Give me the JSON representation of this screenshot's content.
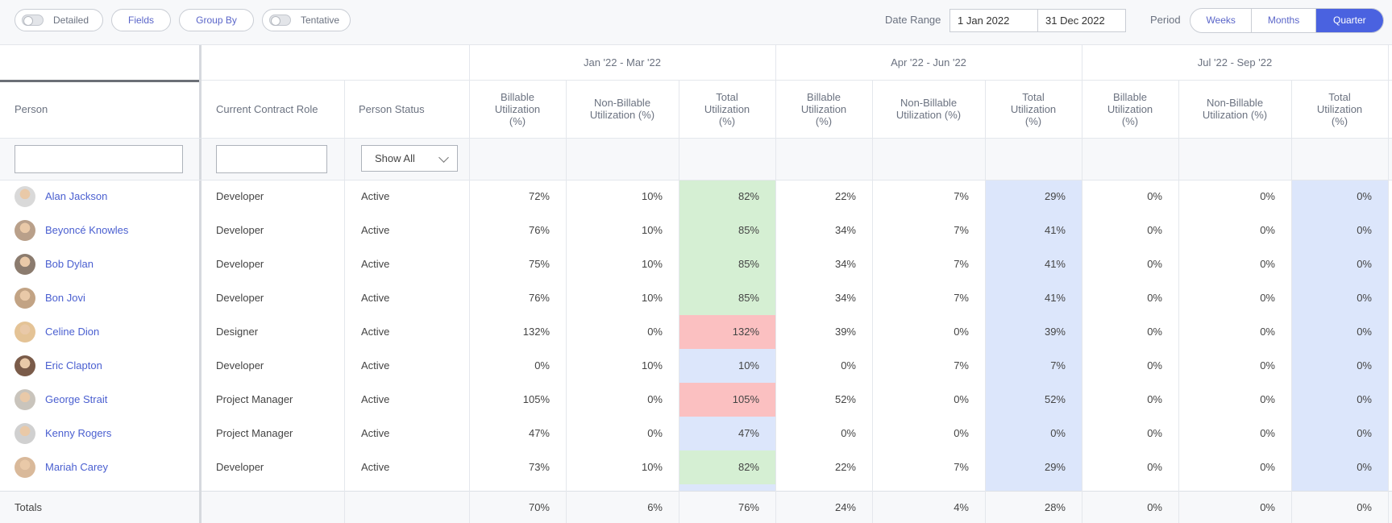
{
  "toolbar": {
    "detailed_label": "Detailed",
    "fields_label": "Fields",
    "group_by_label": "Group By",
    "tentative_label": "Tentative",
    "date_range_label": "Date Range",
    "date_start": "1 Jan 2022",
    "date_end": "31 Dec 2022",
    "period_label": "Period",
    "period_options": [
      "Weeks",
      "Months",
      "Quarter"
    ],
    "period_selected": "Quarter"
  },
  "table": {
    "group_headers": [
      "Jan '22 - Mar '22",
      "Apr '22 - Jun '22",
      "Jul '22 - Sep '22"
    ],
    "columns": {
      "person": "Person",
      "role": "Current Contract Role",
      "status": "Person Status",
      "billable": "Billable Utilization (%)",
      "nonbillable": "Non-Billable Utilization (%)",
      "total": "Total Utilization (%)"
    },
    "status_filter": "Show All",
    "rows": [
      {
        "name": "Alan Jackson",
        "role": "Developer",
        "status": "Active",
        "q1": [
          "72%",
          "10%",
          "82%"
        ],
        "q2": [
          "22%",
          "7%",
          "29%"
        ],
        "q3": [
          "0%",
          "0%",
          "0%"
        ],
        "q1_state": "good"
      },
      {
        "name": "Beyoncé Knowles",
        "role": "Developer",
        "status": "Active",
        "q1": [
          "76%",
          "10%",
          "85%"
        ],
        "q2": [
          "34%",
          "7%",
          "41%"
        ],
        "q3": [
          "0%",
          "0%",
          "0%"
        ],
        "q1_state": "good"
      },
      {
        "name": "Bob Dylan",
        "role": "Developer",
        "status": "Active",
        "q1": [
          "75%",
          "10%",
          "85%"
        ],
        "q2": [
          "34%",
          "7%",
          "41%"
        ],
        "q3": [
          "0%",
          "0%",
          "0%"
        ],
        "q1_state": "good"
      },
      {
        "name": "Bon Jovi",
        "role": "Developer",
        "status": "Active",
        "q1": [
          "76%",
          "10%",
          "85%"
        ],
        "q2": [
          "34%",
          "7%",
          "41%"
        ],
        "q3": [
          "0%",
          "0%",
          "0%"
        ],
        "q1_state": "good"
      },
      {
        "name": "Celine Dion",
        "role": "Designer",
        "status": "Active",
        "q1": [
          "132%",
          "0%",
          "132%"
        ],
        "q2": [
          "39%",
          "0%",
          "39%"
        ],
        "q3": [
          "0%",
          "0%",
          "0%"
        ],
        "q1_state": "over"
      },
      {
        "name": "Eric Clapton",
        "role": "Developer",
        "status": "Active",
        "q1": [
          "0%",
          "10%",
          "10%"
        ],
        "q2": [
          "0%",
          "7%",
          "7%"
        ],
        "q3": [
          "0%",
          "0%",
          "0%"
        ],
        "q1_state": "under"
      },
      {
        "name": "George Strait",
        "role": "Project Manager",
        "status": "Active",
        "q1": [
          "105%",
          "0%",
          "105%"
        ],
        "q2": [
          "52%",
          "0%",
          "52%"
        ],
        "q3": [
          "0%",
          "0%",
          "0%"
        ],
        "q1_state": "over"
      },
      {
        "name": "Kenny Rogers",
        "role": "Project Manager",
        "status": "Active",
        "q1": [
          "47%",
          "0%",
          "47%"
        ],
        "q2": [
          "0%",
          "0%",
          "0%"
        ],
        "q3": [
          "0%",
          "0%",
          "0%"
        ],
        "q1_state": "under"
      },
      {
        "name": "Mariah Carey",
        "role": "Developer",
        "status": "Active",
        "q1": [
          "73%",
          "10%",
          "82%"
        ],
        "q2": [
          "22%",
          "7%",
          "29%"
        ],
        "q3": [
          "0%",
          "0%",
          "0%"
        ],
        "q1_state": "good"
      }
    ],
    "totals": {
      "label": "Totals",
      "q1": [
        "70%",
        "6%",
        "76%"
      ],
      "q2": [
        "24%",
        "4%",
        "28%"
      ],
      "q3": [
        "0%",
        "0%",
        "0%"
      ]
    }
  },
  "colors": {
    "accent": "#4a62e0",
    "link": "#4a5fd0",
    "good": "#d5efd3",
    "over": "#fbc0c1",
    "under": "#dce6fb"
  }
}
